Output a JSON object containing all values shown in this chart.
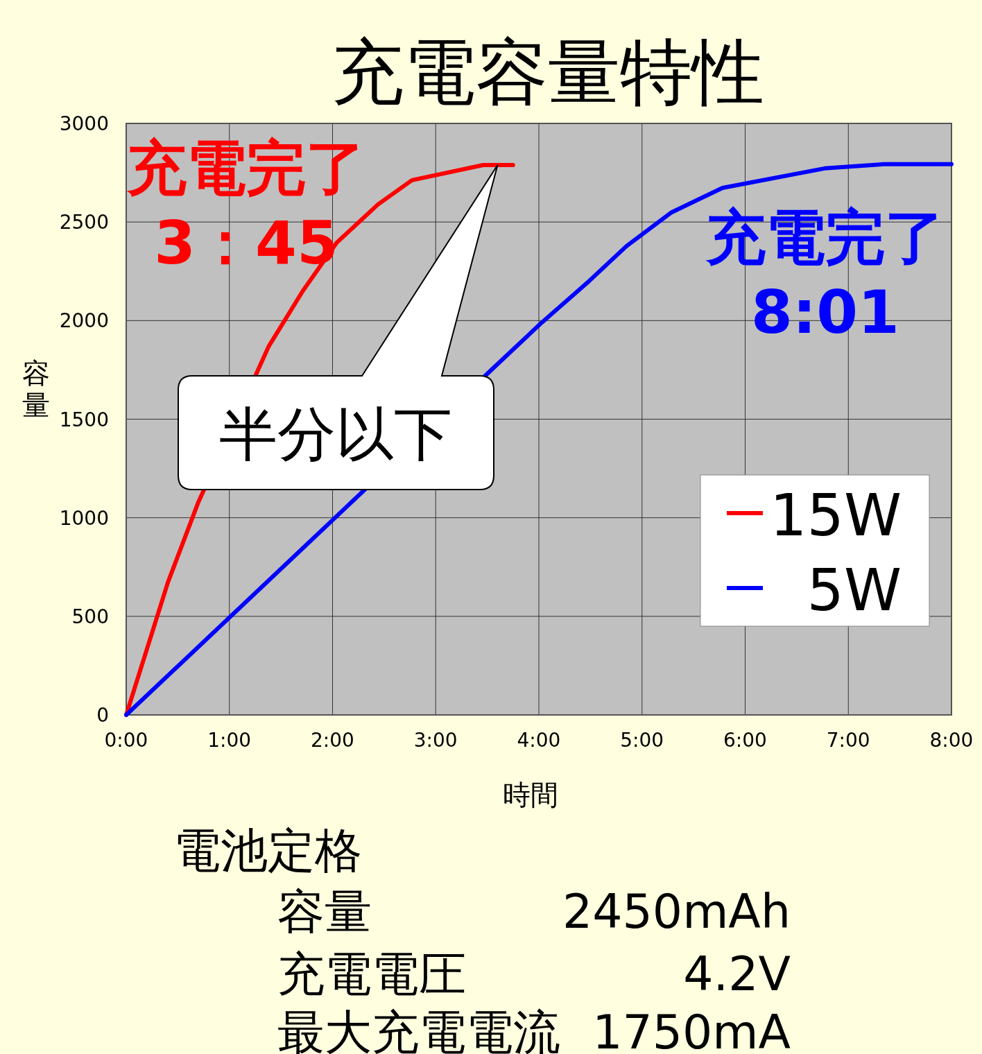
{
  "chart_data": {
    "type": "line",
    "title": "充電容量特性",
    "xlabel": "時間",
    "ylabel": "容量",
    "x": [
      0,
      0.404,
      0.7,
      1.38,
      1.71,
      2.04,
      2.44,
      2.77,
      3.46,
      3.75
    ],
    "series": [
      {
        "name": "15W",
        "color": "#ff0000",
        "values": [
          0,
          672,
          1080,
          1868,
          2149,
          2395,
          2589,
          2712,
          2789,
          2789
        ]
      },
      {
        "name": "5W",
        "color": "#0000ff",
        "x": [
          0,
          2.0,
          3.55,
          4.03,
          4.49,
          4.85,
          5.28,
          5.78,
          6.77,
          7.34,
          8.0
        ],
        "values": [
          0,
          988,
          1755,
          1991,
          2202,
          2378,
          2547,
          2673,
          2772,
          2793,
          2793
        ]
      }
    ],
    "xlim": [
      0,
      8
    ],
    "ylim": [
      0,
      3000
    ],
    "xticks": [
      {
        "value": 0,
        "label": "0:00"
      },
      {
        "value": 1,
        "label": "1:00"
      },
      {
        "value": 2,
        "label": "2:00"
      },
      {
        "value": 3,
        "label": "3:00"
      },
      {
        "value": 4,
        "label": "4:00"
      },
      {
        "value": 5,
        "label": "5:00"
      },
      {
        "value": 6,
        "label": "6:00"
      },
      {
        "value": 7,
        "label": "7:00"
      },
      {
        "value": 8,
        "label": "8:00"
      }
    ],
    "yticks": [
      0,
      500,
      1000,
      1500,
      2000,
      2500,
      3000
    ],
    "grid": true,
    "legend": "right",
    "marker": "none",
    "line_style": "solid",
    "annotations": [
      {
        "text": "充電完了\n3：45",
        "x": 3.75,
        "y": 2789
      },
      {
        "text": "充電完了\n8:01",
        "x": 8.0,
        "y": 2793
      },
      "半分以下",
      "電池定格",
      "容量",
      "2450mAh",
      "充電電圧",
      "4.2V",
      "最大充電電流",
      "1750mA"
    ]
  }
}
